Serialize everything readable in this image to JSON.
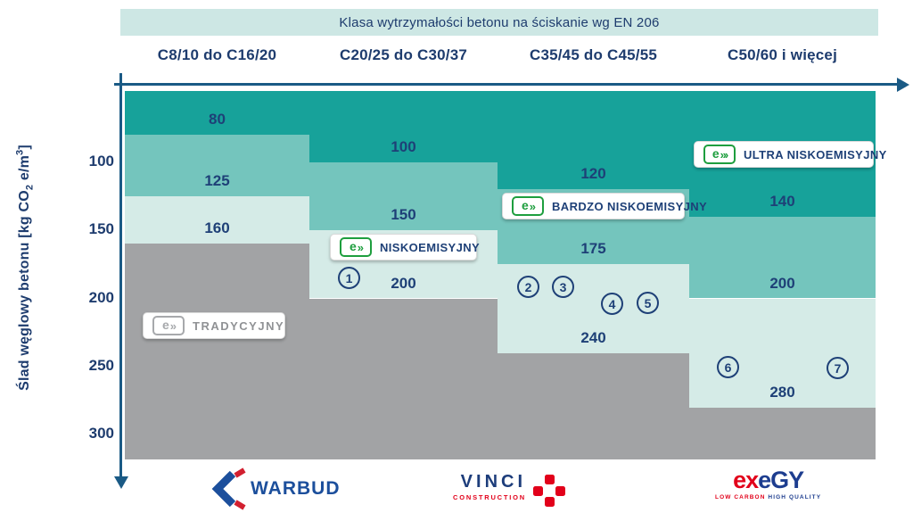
{
  "header": {
    "banner": "Klasa wytrzymałości betonu na ściskanie wg EN 206"
  },
  "y_axis": {
    "title_pre": "Ślad węglowy betonu [kg CO",
    "title_sub": "2",
    "title_mid": " e/m",
    "title_sup": "3",
    "title_post": "]"
  },
  "chart_data": {
    "type": "area",
    "title": "Klasa wytrzymałości betonu na ściskanie wg EN 206",
    "ylabel": "Ślad węglowy betonu [kg CO₂ e/m³]",
    "ylim": [
      48,
      318
    ],
    "y_ticks": [
      100,
      150,
      200,
      250,
      300
    ],
    "y_axis_direction": "inverted",
    "grid": false,
    "legend_position": "in-plot badges",
    "categories": [
      "C8/10 do C16/20",
      "C20/25 do C30/37",
      "C35/45 do C45/55",
      "C50/60 i więcej"
    ],
    "series": [
      {
        "name": "ULTRA NISKOEMISYJNY",
        "color": "#17a29a",
        "upper_limits": [
          80,
          100,
          120,
          140
        ]
      },
      {
        "name": "BARDZO NISKOEMISYJNY",
        "color": "#74c5bd",
        "upper_limits": [
          125,
          150,
          175,
          200
        ]
      },
      {
        "name": "NISKOEMISYJNY",
        "color": "#d5ebe7",
        "upper_limits": [
          160,
          200,
          240,
          280
        ]
      },
      {
        "name": "TRADYCYJNY",
        "color": "#a2a3a5",
        "upper_limits": [
          null,
          null,
          null,
          null
        ]
      }
    ]
  },
  "badges": {
    "ultra": "ULTRA NISKOEMISYJNY",
    "bardzo": "BARDZO NISKOEMISYJNY",
    "nisko": "NISKOEMISYJNY",
    "tradycyjny": "TRADYCYJNY"
  },
  "icon": {
    "letter": "e",
    "chevron": "»",
    "chevron_ultra": "»›"
  },
  "markers": [
    "1",
    "2",
    "3",
    "4",
    "5",
    "6",
    "7"
  ],
  "logos": {
    "warbud": "WARBUD",
    "vinci_name": "VINCI",
    "vinci_sub": "CONSTRUCTION",
    "exegy_red": "ex",
    "exegy_blue": "eGY",
    "exegy_tag_red": "LOW CARBON ",
    "exegy_tag_blue": "HIGH QUALITY"
  }
}
